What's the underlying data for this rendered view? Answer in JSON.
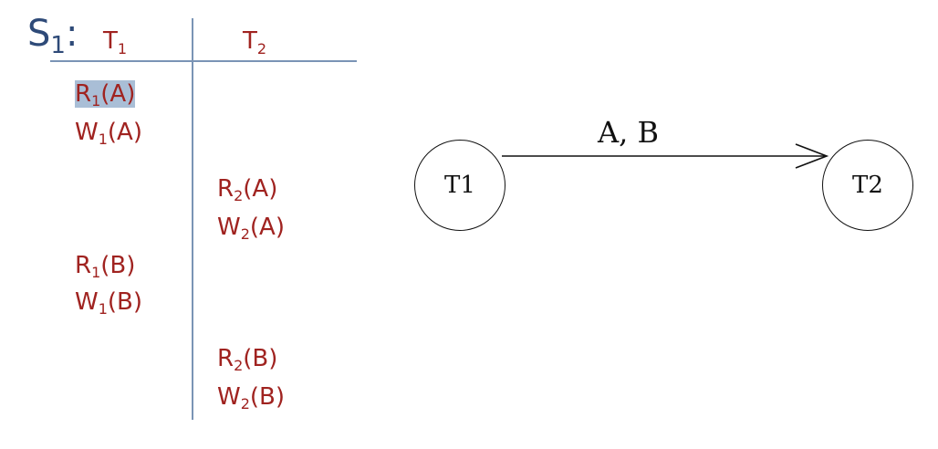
{
  "schedule": {
    "name_base": "S",
    "name_sub": "1",
    "colon": ":",
    "columns": [
      {
        "base": "T",
        "sub": "1"
      },
      {
        "base": "T",
        "sub": "2"
      }
    ],
    "operations": [
      {
        "txn": "T1",
        "base": "R",
        "sub": "1",
        "arg": "(A)",
        "highlighted": true
      },
      {
        "txn": "T1",
        "base": "W",
        "sub": "1",
        "arg": "(A)"
      },
      {
        "txn": "T2",
        "base": "R",
        "sub": "2",
        "arg": "(A)"
      },
      {
        "txn": "T2",
        "base": "W",
        "sub": "2",
        "arg": "(A)"
      },
      {
        "txn": "T1",
        "base": "R",
        "sub": "1",
        "arg": "(B)"
      },
      {
        "txn": "T1",
        "base": "W",
        "sub": "1",
        "arg": "(B)"
      },
      {
        "txn": "T2",
        "base": "R",
        "sub": "2",
        "arg": "(B)"
      },
      {
        "txn": "T2",
        "base": "W",
        "sub": "2",
        "arg": "(B)"
      }
    ]
  },
  "graph": {
    "nodes": [
      {
        "id": "T1",
        "label": "T1"
      },
      {
        "id": "T2",
        "label": "T2"
      }
    ],
    "edge": {
      "from": "T1",
      "to": "T2",
      "label": "A, B"
    }
  },
  "colors": {
    "ops": "#a02320",
    "schedule_label": "#2e4a78",
    "rules": "#7a94b5",
    "highlight": "#a9bed6"
  }
}
